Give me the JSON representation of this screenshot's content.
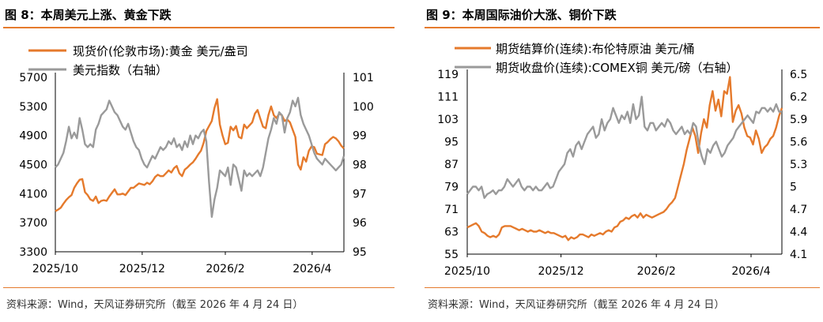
{
  "colors": {
    "orange": "#e57a2c",
    "gray": "#9a9a9a",
    "rule": "#e57a2c"
  },
  "charts": [
    {
      "title": "图 8：本周美元上涨、黄金下跌",
      "source": "资料来源：Wind，天风证券研究所（截至 2026 年 4 月 24 日）",
      "chart_data": {
        "type": "line",
        "x_tick_labels": [
          "2025/10",
          "2025/12",
          "2026/2",
          "2026/4"
        ],
        "legend_position": "top-left",
        "grid": false,
        "left_axis": {
          "ticks": [
            "5700",
            "5300",
            "4900",
            "4500",
            "4100",
            "3700",
            "3300"
          ],
          "ylim": [
            3300,
            5700
          ]
        },
        "right_axis": {
          "ticks": [
            "101",
            "100",
            "99",
            "98",
            "97",
            "96",
            "95"
          ],
          "ylim": [
            95,
            101
          ]
        },
        "series": [
          {
            "name": "现货价(伦敦市场):黄金 美元/盎司",
            "axis": "left",
            "color": "#e57a2c",
            "values": [
              3858,
              3880,
              3905,
              3960,
              4010,
              4050,
              4080,
              4180,
              4240,
              4290,
              4300,
              4120,
              4080,
              4020,
              4000,
              4060,
              3970,
              4000,
              4010,
              4000,
              4060,
              4110,
              4160,
              4090,
              4090,
              4100,
              4080,
              4130,
              4180,
              4180,
              4210,
              4240,
              4230,
              4220,
              4250,
              4230,
              4270,
              4330,
              4360,
              4340,
              4340,
              4380,
              4420,
              4390,
              4450,
              4480,
              4380,
              4340,
              4430,
              4460,
              4500,
              4530,
              4580,
              4640,
              4690,
              4800,
              4960,
              5030,
              5100,
              5280,
              5400,
              5050,
              4900,
              4780,
              4800,
              5020,
              4970,
              5030,
              4880,
              4860,
              5050,
              5000,
              5040,
              5080,
              5200,
              5250,
              5130,
              5020,
              5000,
              5180,
              5300,
              5180,
              5140,
              5200,
              5180,
              5100,
              5120,
              5080,
              4980,
              4880,
              4500,
              4430,
              4600,
              4540,
              4690,
              4750,
              4740,
              4650,
              4640,
              4630,
              4780,
              4810,
              4850,
              4880,
              4860,
              4820,
              4760,
              4720
            ]
          },
          {
            "name": "美元指数（右轴）",
            "axis": "right",
            "color": "#9a9a9a",
            "values": [
              97.9,
              98.0,
              98.2,
              98.4,
              98.8,
              99.3,
              98.9,
              99.1,
              98.9,
              99.6,
              99.2,
              98.7,
              98.6,
              98.7,
              98.6,
              99.2,
              99.4,
              99.7,
              99.8,
              99.9,
              100.2,
              100.0,
              99.8,
              99.7,
              99.5,
              99.3,
              99.2,
              99.4,
              99.1,
              98.8,
              98.6,
              98.5,
              98.2,
              98.0,
              97.9,
              98.1,
              98.3,
              98.2,
              98.4,
              98.6,
              98.5,
              98.6,
              98.8,
              98.7,
              98.9,
              98.6,
              98.7,
              98.5,
              98.8,
              98.6,
              99.0,
              98.7,
              99.0,
              98.9,
              99.1,
              99.2,
              98.8,
              97.4,
              96.2,
              96.8,
              97.2,
              97.8,
              97.7,
              97.6,
              97.9,
              97.3,
              98.0,
              97.9,
              97.5,
              97.1,
              97.8,
              97.6,
              97.7,
              97.6,
              97.7,
              97.8,
              97.6,
              97.9,
              98.4,
              98.9,
              99.2,
              99.6,
              99.4,
              99.8,
              99.7,
              99.1,
              99.6,
              99.8,
              100.2,
              100.0,
              100.3,
              99.7,
              99.4,
              99.2,
              99.0,
              98.7,
              98.4,
              98.2,
              98.1,
              98.0,
              98.2,
              98.1,
              98.0,
              97.9,
              97.8,
              97.9,
              98.0,
              98.3
            ]
          }
        ]
      }
    },
    {
      "title": "图 9：本周国际油价大涨、铜价下跌",
      "source": "资料来源：Wind，天风证券研究所（截至 2026 年 4 月 24 日）",
      "chart_data": {
        "type": "line",
        "x_tick_labels": [
          "2025/10",
          "2025/12",
          "2026/2",
          "2026/4"
        ],
        "legend_position": "top-left",
        "grid": false,
        "left_axis": {
          "ticks": [
            "119",
            "111",
            "103",
            "95",
            "87",
            "79",
            "71",
            "63",
            "55"
          ],
          "ylim": [
            55,
            119
          ]
        },
        "right_axis": {
          "ticks": [
            "6.5",
            "6.2",
            "5.9",
            "5.6",
            "5.3",
            "5",
            "4.7",
            "4.4",
            "4.1"
          ],
          "ylim": [
            4.1,
            6.5
          ]
        },
        "series": [
          {
            "name": "期货结算价(连续):布伦特原油 美元/桶",
            "axis": "left",
            "color": "#e57a2c",
            "values": [
              64.5,
              65.0,
              65.5,
              66.0,
              65.0,
              63.0,
              62.5,
              61.5,
              61.0,
              61.5,
              61.0,
              62.0,
              64.5,
              65.0,
              65.0,
              65.0,
              64.5,
              64.0,
              63.5,
              64.0,
              63.5,
              63.0,
              63.5,
              63.0,
              63.0,
              63.5,
              63.0,
              62.5,
              63.0,
              62.5,
              62.5,
              62.0,
              61.5,
              61.0,
              61.5,
              60.0,
              61.0,
              60.5,
              61.0,
              62.0,
              62.0,
              61.5,
              61.0,
              62.0,
              61.5,
              62.0,
              62.5,
              62.0,
              63.0,
              63.5,
              63.0,
              64.5,
              65.0,
              66.5,
              67.0,
              68.0,
              67.5,
              68.5,
              69.0,
              68.0,
              69.5,
              68.0,
              69.0,
              68.5,
              68.0,
              68.5,
              69.0,
              69.5,
              70.0,
              71.0,
              72.5,
              73.5,
              75.0,
              79.0,
              83.0,
              87.0,
              92.0,
              96.0,
              100.0,
              97.0,
              91.0,
              98.0,
              103.0,
              100.0,
              108.0,
              113.0,
              106.0,
              110.0,
              104.0,
              113.0,
              112.0,
              118.0,
              102.0,
              106.0,
              108.0,
              105.0,
              100.0,
              97.0,
              96.5,
              94.0,
              99.0,
              96.0,
              91.0,
              93.0,
              94.0,
              96.0,
              97.0,
              100.0,
              104.0,
              107.0
            ]
          },
          {
            "name": "期货收盘价(连续):COMEX铜 美元/磅（右轴）",
            "axis": "right",
            "color": "#9a9a9a",
            "values": [
              4.9,
              4.95,
              5.0,
              5.0,
              4.95,
              5.0,
              4.85,
              4.9,
              4.92,
              4.95,
              4.9,
              4.95,
              4.95,
              5.0,
              5.1,
              5.05,
              5.0,
              5.05,
              5.1,
              5.0,
              4.95,
              5.0,
              5.0,
              4.95,
              5.0,
              4.95,
              4.95,
              5.0,
              5.05,
              4.98,
              5.0,
              5.1,
              5.2,
              5.25,
              5.3,
              5.45,
              5.5,
              5.4,
              5.55,
              5.6,
              5.5,
              5.6,
              5.7,
              5.75,
              5.8,
              5.65,
              5.7,
              5.9,
              5.75,
              5.85,
              5.9,
              6.05,
              5.95,
              5.85,
              5.95,
              5.9,
              6.0,
              5.85,
              6.1,
              5.9,
              5.95,
              6.2,
              5.8,
              5.75,
              5.85,
              5.85,
              5.75,
              5.8,
              5.85,
              5.8,
              5.9,
              5.85,
              5.75,
              5.7,
              5.75,
              5.8,
              5.7,
              5.75,
              5.7,
              5.85,
              5.8,
              5.55,
              5.4,
              5.3,
              5.5,
              5.45,
              5.55,
              5.6,
              5.5,
              5.4,
              5.45,
              5.55,
              5.6,
              5.65,
              5.75,
              5.8,
              5.85,
              5.9,
              5.95,
              5.9,
              5.85,
              6.0,
              5.98,
              6.05,
              6.05,
              6.0,
              6.05,
              6.0,
              6.1,
              6.0,
              6.0
            ]
          }
        ]
      }
    }
  ]
}
